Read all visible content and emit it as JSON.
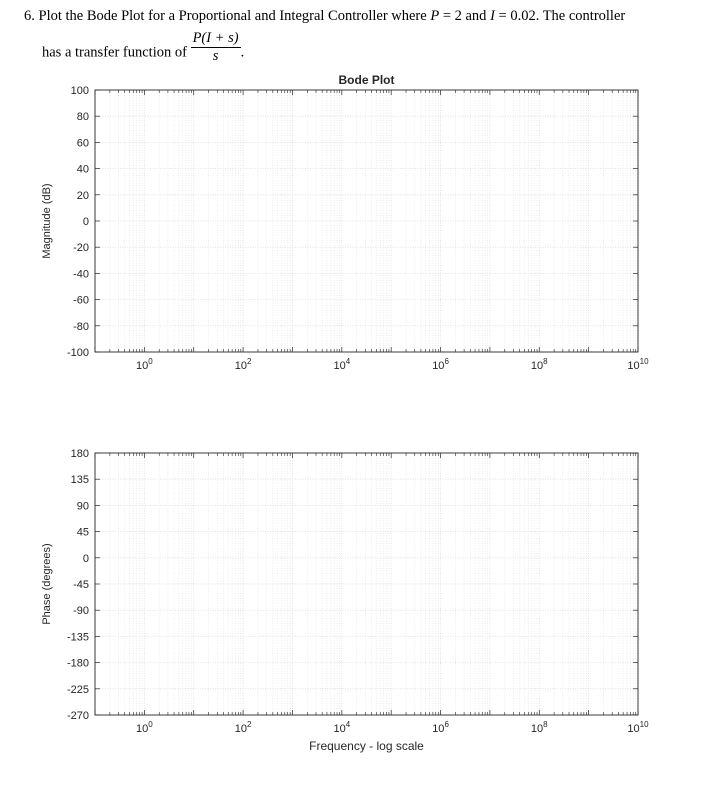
{
  "problem": {
    "number": "6.",
    "line1_text": "Plot the Bode Plot for a Proportional and Integral Controller where",
    "p_symbol": "P",
    "p_value": "= 2 and",
    "i_symbol": "I",
    "i_value": "= 0.02. The controller",
    "line2_text": "has a transfer function of",
    "tf_numerator": "P(I + s)",
    "tf_denominator": "s",
    "tf_end": "."
  },
  "chart_data": [
    {
      "type": "line",
      "title": "Bode Plot",
      "xlabel": "",
      "ylabel": "Magnitude (dB)",
      "xscale": "log",
      "xlim": [
        0.1,
        10000000000
      ],
      "ylim": [
        -100,
        100
      ],
      "xticks": [
        1,
        100,
        10000,
        1000000,
        100000000,
        10000000000
      ],
      "xtick_labels": [
        {
          "base": "10",
          "exp": "0"
        },
        {
          "base": "10",
          "exp": "2"
        },
        {
          "base": "10",
          "exp": "4"
        },
        {
          "base": "10",
          "exp": "6"
        },
        {
          "base": "10",
          "exp": "8"
        },
        {
          "base": "10",
          "exp": "10"
        }
      ],
      "yticks": [
        100,
        80,
        60,
        40,
        20,
        0,
        -20,
        -40,
        -60,
        -80,
        -100
      ],
      "ytick_labels": [
        "100",
        "80",
        "60",
        "40",
        "20",
        "0",
        "-20",
        "-40",
        "-60",
        "-80",
        "-100"
      ],
      "grid": true,
      "minor_grid": true,
      "series": []
    },
    {
      "type": "line",
      "title": "",
      "xlabel": "Frequency - log scale",
      "ylabel": "Phase (degrees)",
      "xscale": "log",
      "xlim": [
        0.1,
        10000000000
      ],
      "ylim": [
        -270,
        180
      ],
      "xticks": [
        1,
        100,
        10000,
        1000000,
        100000000,
        10000000000
      ],
      "xtick_labels": [
        {
          "base": "10",
          "exp": "0"
        },
        {
          "base": "10",
          "exp": "2"
        },
        {
          "base": "10",
          "exp": "4"
        },
        {
          "base": "10",
          "exp": "6"
        },
        {
          "base": "10",
          "exp": "8"
        },
        {
          "base": "10",
          "exp": "10"
        }
      ],
      "yticks": [
        180,
        135,
        90,
        45,
        0,
        -45,
        -90,
        -135,
        -180,
        -225,
        -270
      ],
      "ytick_labels": [
        "180",
        "135",
        "90",
        "45",
        "0",
        "-45",
        "-90",
        "-135",
        "-180",
        "-225",
        "-270"
      ],
      "grid": true,
      "minor_grid": true,
      "series": []
    }
  ],
  "colors": {
    "axis": "#262626",
    "major_grid": "#dcdcdc",
    "minor_grid": "#e6e6e6"
  }
}
